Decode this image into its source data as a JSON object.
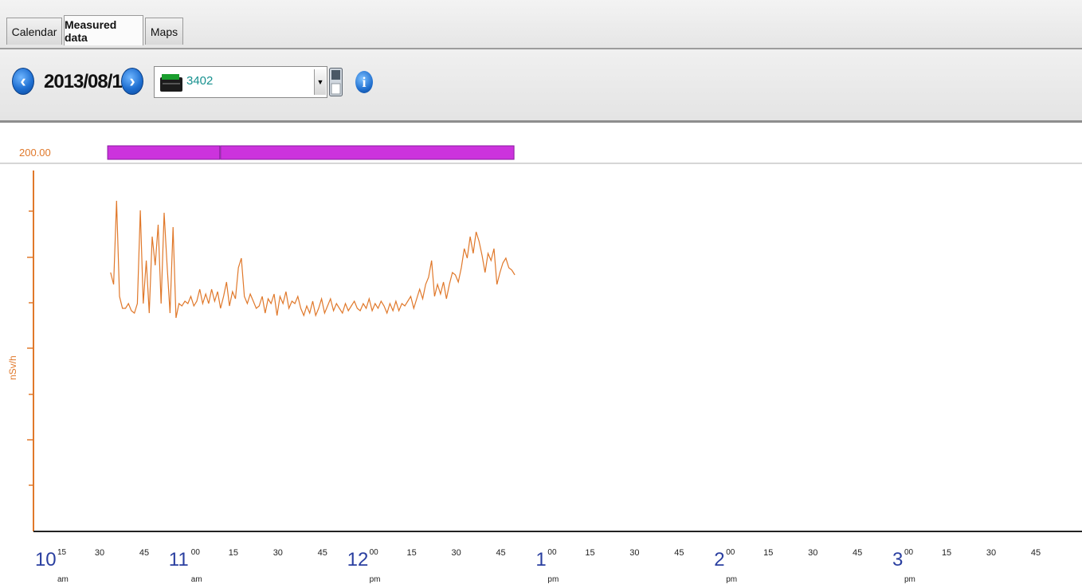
{
  "tabs": [
    {
      "label": "Calendar",
      "active": false
    },
    {
      "label": "Measured data",
      "active": true
    },
    {
      "label": "Maps",
      "active": false
    }
  ],
  "toolbar": {
    "date": "2013/08/12",
    "device": "3402",
    "prev_icon": "chevron-left-icon",
    "next_icon": "chevron-right-icon",
    "save_icon": "save-icon",
    "info_icon": "info-icon"
  },
  "colors": {
    "series": "#e0782a",
    "bar": "#cc33dd",
    "hour_label": "#2a3fa0",
    "axis": "#e0782a"
  },
  "chart_data": {
    "type": "line",
    "ylabel": "nSv/h",
    "top_label": "200.00",
    "series": [
      {
        "values": [
          [
            34,
            125
          ],
          [
            35,
            120
          ],
          [
            36,
            155
          ],
          [
            37,
            115
          ],
          [
            38,
            110
          ],
          [
            39,
            110
          ],
          [
            40,
            112
          ],
          [
            41,
            109
          ],
          [
            42,
            108
          ],
          [
            43,
            112
          ],
          [
            44,
            151
          ],
          [
            45,
            112
          ],
          [
            46,
            130
          ],
          [
            47,
            108
          ],
          [
            48,
            140
          ],
          [
            49,
            128
          ],
          [
            50,
            145
          ],
          [
            51,
            112
          ],
          [
            52,
            150
          ],
          [
            53,
            128
          ],
          [
            54,
            108
          ],
          [
            55,
            144
          ],
          [
            56,
            106
          ],
          [
            57,
            112
          ],
          [
            58,
            111
          ],
          [
            59,
            113
          ],
          [
            60,
            112
          ],
          [
            61,
            115
          ],
          [
            62,
            111
          ],
          [
            63,
            113
          ],
          [
            64,
            118
          ],
          [
            65,
            112
          ],
          [
            66,
            116
          ],
          [
            67,
            112
          ],
          [
            68,
            118
          ],
          [
            69,
            113
          ],
          [
            70,
            117
          ],
          [
            71,
            110
          ],
          [
            72,
            115
          ],
          [
            73,
            121
          ],
          [
            74,
            111
          ],
          [
            75,
            117
          ],
          [
            76,
            114
          ],
          [
            77,
            127
          ],
          [
            78,
            131
          ],
          [
            79,
            115
          ],
          [
            80,
            112
          ],
          [
            81,
            116
          ],
          [
            82,
            113
          ],
          [
            83,
            110
          ],
          [
            84,
            111
          ],
          [
            85,
            115
          ],
          [
            86,
            108
          ],
          [
            87,
            114
          ],
          [
            88,
            112
          ],
          [
            89,
            116
          ],
          [
            90,
            107
          ],
          [
            91,
            115
          ],
          [
            92,
            112
          ],
          [
            93,
            117
          ],
          [
            94,
            110
          ],
          [
            95,
            113
          ],
          [
            96,
            112
          ],
          [
            97,
            115
          ],
          [
            98,
            110
          ],
          [
            99,
            107
          ],
          [
            100,
            111
          ],
          [
            101,
            108
          ],
          [
            102,
            113
          ],
          [
            103,
            107
          ],
          [
            104,
            110
          ],
          [
            105,
            114
          ],
          [
            106,
            108
          ],
          [
            107,
            111
          ],
          [
            108,
            114
          ],
          [
            109,
            109
          ],
          [
            110,
            112
          ],
          [
            111,
            110
          ],
          [
            112,
            108
          ],
          [
            113,
            112
          ],
          [
            114,
            109
          ],
          [
            115,
            111
          ],
          [
            116,
            113
          ],
          [
            117,
            110
          ],
          [
            118,
            109
          ],
          [
            119,
            112
          ],
          [
            120,
            110
          ],
          [
            121,
            114
          ],
          [
            122,
            109
          ],
          [
            123,
            112
          ],
          [
            124,
            110
          ],
          [
            125,
            113
          ],
          [
            126,
            111
          ],
          [
            127,
            108
          ],
          [
            128,
            112
          ],
          [
            129,
            109
          ],
          [
            130,
            113
          ],
          [
            131,
            109
          ],
          [
            132,
            112
          ],
          [
            133,
            111
          ],
          [
            134,
            113
          ],
          [
            135,
            115
          ],
          [
            136,
            110
          ],
          [
            137,
            114
          ],
          [
            138,
            118
          ],
          [
            139,
            114
          ],
          [
            140,
            120
          ],
          [
            141,
            123
          ],
          [
            142,
            130
          ],
          [
            143,
            115
          ],
          [
            144,
            120
          ],
          [
            145,
            116
          ],
          [
            146,
            121
          ],
          [
            147,
            114
          ],
          [
            148,
            120
          ],
          [
            149,
            125
          ],
          [
            150,
            124
          ],
          [
            151,
            121
          ],
          [
            152,
            127
          ],
          [
            153,
            135
          ],
          [
            154,
            131
          ],
          [
            155,
            140
          ],
          [
            156,
            133
          ],
          [
            157,
            142
          ],
          [
            158,
            138
          ],
          [
            159,
            132
          ],
          [
            160,
            125
          ],
          [
            161,
            133
          ],
          [
            162,
            130
          ],
          [
            163,
            135
          ],
          [
            164,
            120
          ],
          [
            165,
            125
          ],
          [
            166,
            129
          ],
          [
            167,
            131
          ],
          [
            168,
            127
          ],
          [
            169,
            126
          ],
          [
            170,
            124
          ]
        ]
      }
    ],
    "bar": {
      "segments": [
        [
          33,
          71
        ],
        [
          71,
          170
        ]
      ]
    },
    "x_ticks": [
      {
        "min": 15,
        "label": "15",
        "hour": "10",
        "ampm": "am"
      },
      {
        "min": 30,
        "label": "30"
      },
      {
        "min": 45,
        "label": "45"
      },
      {
        "min": 60,
        "label": "00",
        "hour": "11",
        "ampm": "am"
      },
      {
        "min": 75,
        "label": "15"
      },
      {
        "min": 90,
        "label": "30"
      },
      {
        "min": 105,
        "label": "45"
      },
      {
        "min": 120,
        "label": "00",
        "hour": "12",
        "ampm": "pm"
      },
      {
        "min": 135,
        "label": "15"
      },
      {
        "min": 150,
        "label": "30"
      },
      {
        "min": 165,
        "label": "45"
      },
      {
        "min": 180,
        "label": "00",
        "hour": "1",
        "ampm": "pm"
      },
      {
        "min": 195,
        "label": "15"
      },
      {
        "min": 210,
        "label": "30"
      },
      {
        "min": 225,
        "label": "45"
      },
      {
        "min": 240,
        "label": "00",
        "hour": "2",
        "ampm": "pm"
      },
      {
        "min": 255,
        "label": "15"
      },
      {
        "min": 270,
        "label": "30"
      },
      {
        "min": 285,
        "label": "45"
      },
      {
        "min": 300,
        "label": "00",
        "hour": "3",
        "ampm": "pm"
      },
      {
        "min": 315,
        "label": "15"
      },
      {
        "min": 330,
        "label": "30"
      },
      {
        "min": 345,
        "label": "45"
      }
    ]
  }
}
